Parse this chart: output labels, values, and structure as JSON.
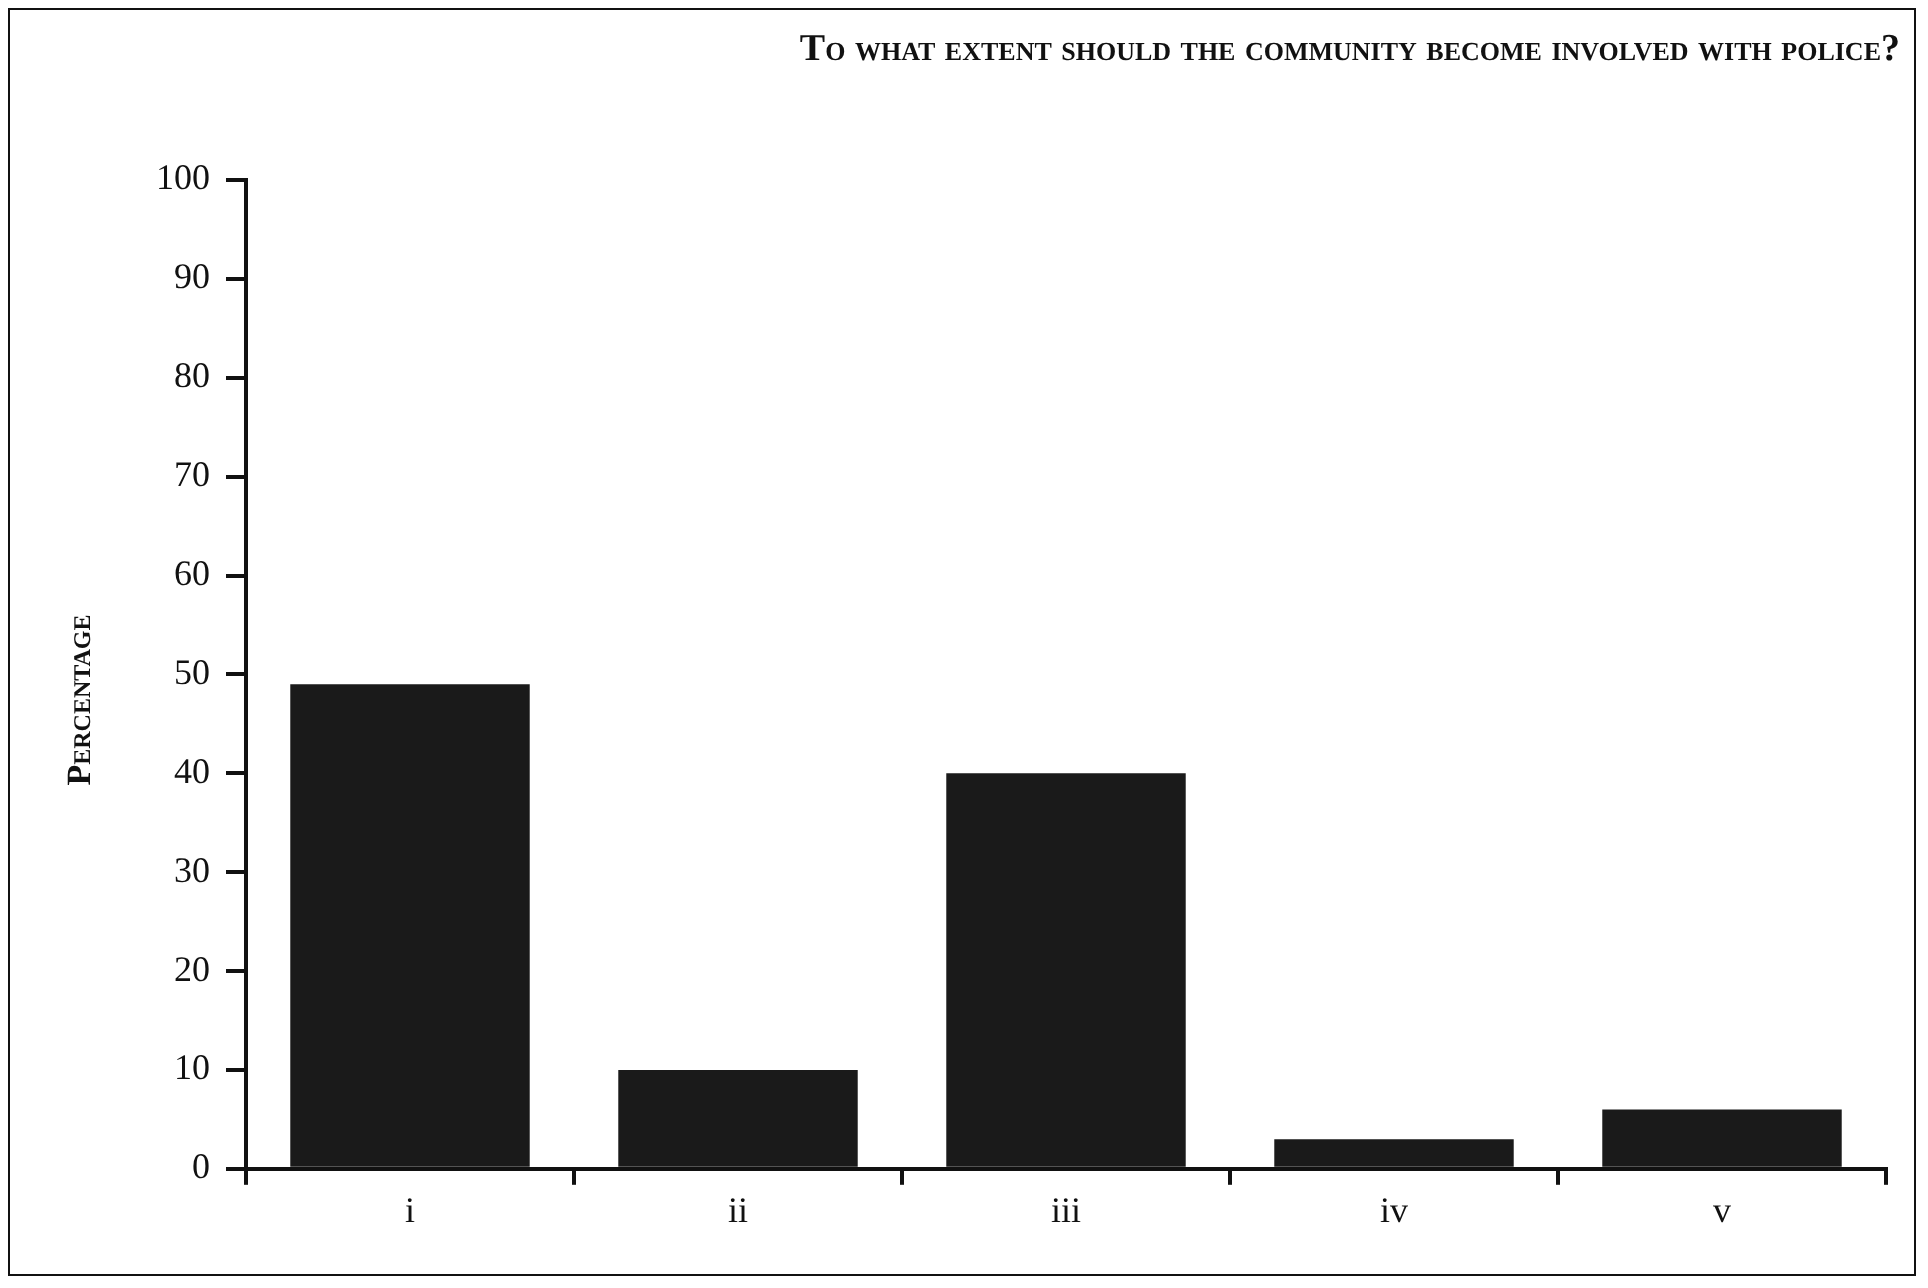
{
  "chart_data": {
    "type": "bar",
    "title": "To what extent should the community become involved with police?",
    "ylabel": "Percentage",
    "categories": [
      "i",
      "ii",
      "iii",
      "iv",
      "v"
    ],
    "values": [
      49,
      10,
      40,
      3,
      6
    ],
    "color": "#1a1a1a",
    "ylim": [
      0,
      100
    ],
    "yticks": [
      0,
      10,
      20,
      30,
      40,
      50,
      60,
      70,
      80,
      90,
      100
    ],
    "grid": false,
    "legend": false
  }
}
